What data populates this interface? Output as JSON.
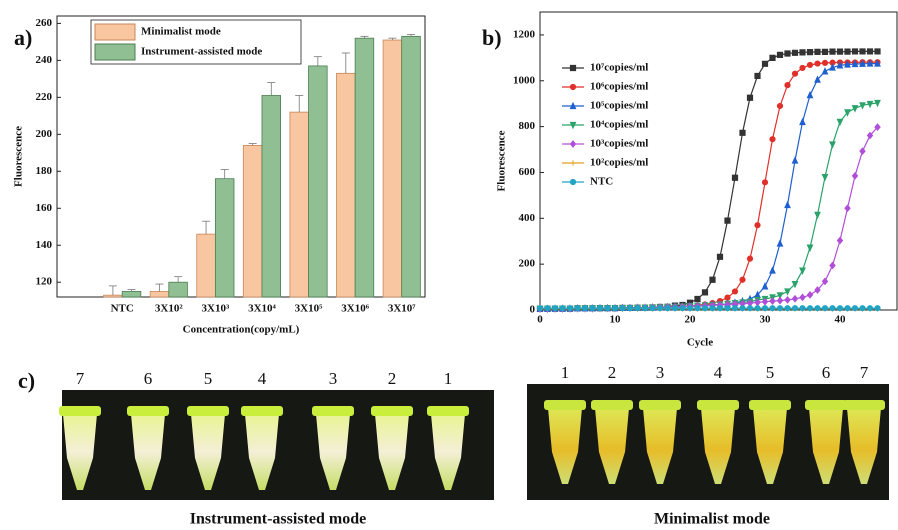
{
  "chart_data": [
    {
      "type": "bar",
      "panel": "a)",
      "y_label": "Fluorescence",
      "x_label": "Concentration(copy/mL)",
      "categories": [
        "NTC",
        "3X10²",
        "3X10³",
        "3X10⁴",
        "3X10⁵",
        "3X10⁶",
        "3X10⁷"
      ],
      "series": [
        {
          "name": "Minimalist mode",
          "color": "#f8c6a0",
          "values": [
            113,
            115,
            146,
            194,
            212,
            233,
            251
          ],
          "errors": [
            5,
            4,
            7,
            1,
            9,
            11,
            1
          ]
        },
        {
          "name": "Instrument-assisted mode",
          "color": "#8fbf93",
          "values": [
            115,
            120,
            176,
            221,
            237,
            252,
            253
          ],
          "errors": [
            1,
            3,
            5,
            7,
            5,
            1,
            1
          ]
        }
      ],
      "ylim": [
        112,
        264
      ],
      "yticks": [
        120,
        140,
        160,
        180,
        200,
        220,
        240,
        260
      ],
      "legend": "upper left"
    },
    {
      "type": "line",
      "panel": "b)",
      "y_label": "Fluorescence",
      "x_label": "Cycle",
      "x": [
        0,
        1,
        2,
        3,
        4,
        5,
        6,
        7,
        8,
        9,
        10,
        11,
        12,
        13,
        14,
        15,
        16,
        17,
        18,
        19,
        20,
        21,
        22,
        23,
        24,
        25,
        26,
        27,
        28,
        29,
        30,
        31,
        32,
        33,
        34,
        35,
        36,
        37,
        38,
        39,
        40,
        41,
        42,
        43,
        44,
        45
      ],
      "series": [
        {
          "name": "10⁷copies/ml",
          "color": "#333333",
          "marker": "square",
          "values": [
            5,
            5,
            6,
            6,
            6,
            7,
            7,
            7,
            8,
            8,
            8,
            9,
            9,
            10,
            10,
            11,
            13,
            14,
            19,
            22,
            32,
            48,
            77,
            132,
            232,
            390,
            577,
            773,
            926,
            1021,
            1074,
            1100,
            1113,
            1119,
            1122,
            1124,
            1125,
            1126,
            1126,
            1127,
            1127,
            1127,
            1128,
            1128,
            1128,
            1128
          ]
        },
        {
          "name": "10⁶copies/ml",
          "color": "#e0302a",
          "marker": "circle",
          "values": [
            5,
            5,
            6,
            6,
            6,
            7,
            7,
            7,
            8,
            8,
            8,
            9,
            9,
            10,
            10,
            11,
            12,
            13,
            14,
            15,
            17,
            20,
            24,
            30,
            39,
            54,
            81,
            132,
            224,
            370,
            557,
            745,
            890,
            981,
            1031,
            1056,
            1069,
            1075,
            1078,
            1079,
            1080,
            1080,
            1080,
            1081,
            1081,
            1081
          ]
        },
        {
          "name": "10⁵copies/ml",
          "color": "#1f5fcf",
          "marker": "triangle",
          "values": [
            5,
            5,
            6,
            6,
            6,
            7,
            7,
            7,
            8,
            8,
            8,
            9,
            9,
            10,
            10,
            11,
            12,
            13,
            14,
            15,
            17,
            18,
            20,
            22,
            24,
            27,
            32,
            38,
            48,
            66,
            103,
            172,
            290,
            458,
            652,
            820,
            937,
            1005,
            1041,
            1058,
            1067,
            1071,
            1073,
            1074,
            1075,
            1075
          ]
        },
        {
          "name": "10⁴copies/ml",
          "color": "#2aa36a",
          "marker": "down",
          "values": [
            5,
            5,
            6,
            6,
            6,
            7,
            7,
            7,
            8,
            8,
            8,
            9,
            9,
            10,
            10,
            11,
            12,
            13,
            14,
            15,
            17,
            18,
            20,
            22,
            24,
            27,
            30,
            33,
            36,
            44,
            48,
            55,
            64,
            81,
            113,
            172,
            272,
            415,
            580,
            722,
            821,
            862,
            880,
            893,
            899,
            903
          ]
        },
        {
          "name": "10³copies/ml",
          "color": "#b04fd8",
          "marker": "diamond",
          "values": [
            5,
            5,
            6,
            6,
            6,
            7,
            7,
            7,
            8,
            8,
            8,
            9,
            9,
            10,
            10,
            11,
            12,
            13,
            14,
            15,
            16,
            17,
            18,
            20,
            22,
            24,
            26,
            28,
            30,
            33,
            36,
            39,
            41,
            44,
            49,
            55,
            66,
            87,
            125,
            194,
            303,
            444,
            585,
            693,
            761,
            798
          ]
        },
        {
          "name": "10²copies/ml",
          "color": "#e0a020",
          "marker": "star",
          "values": [
            5,
            5,
            5,
            5,
            5,
            5,
            5,
            5,
            5,
            5,
            5,
            5,
            5,
            5,
            5,
            5,
            5,
            5,
            5,
            5,
            5,
            5,
            5,
            5,
            5,
            5,
            5,
            5,
            5,
            5,
            5,
            5,
            5,
            5,
            5,
            5,
            5,
            5,
            5,
            5,
            5,
            5,
            5,
            5,
            5,
            5
          ]
        },
        {
          "name": "NTC",
          "color": "#21a3c4",
          "marker": "circle",
          "values": [
            8,
            8,
            8,
            8,
            8,
            8,
            8,
            8,
            8,
            8,
            8,
            8,
            8,
            8,
            8,
            8,
            8,
            8,
            8,
            8,
            8,
            8,
            8,
            8,
            8,
            8,
            8,
            8,
            8,
            8,
            8,
            8,
            8,
            8,
            8,
            8,
            8,
            8,
            8,
            8,
            8,
            8,
            8,
            8,
            8,
            8
          ]
        }
      ],
      "xlim": [
        0,
        47.6
      ],
      "xticks": [
        0,
        10,
        20,
        30,
        40
      ],
      "ylim": [
        0,
        1300
      ],
      "yticks": [
        0,
        200,
        400,
        600,
        800,
        1000,
        1200
      ],
      "legend": "upper left"
    }
  ],
  "photos": {
    "panel": "c)",
    "left": {
      "labels": [
        "7",
        "6",
        "5",
        "4",
        "3",
        "2",
        "1"
      ],
      "caption": "Instrument-assisted mode"
    },
    "right": {
      "labels": [
        "1",
        "2",
        "3",
        "4",
        "5",
        "6",
        "7"
      ],
      "caption": "Minimalist mode"
    }
  }
}
